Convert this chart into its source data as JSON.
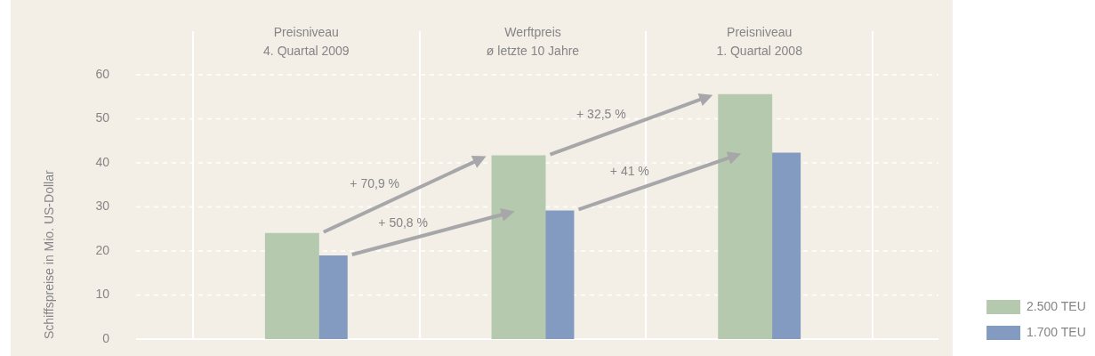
{
  "chart_data": {
    "type": "bar",
    "categories": [
      "Preisniveau\n4. Quartal 2009",
      "Werftpreis\nø letzte 10 Jahre",
      "Preisniveau\n1. Quartal 2008"
    ],
    "series": [
      {
        "name": "2.500 TEU",
        "color": "#b5c9ae",
        "values": [
          24.1,
          41.7,
          55.6
        ]
      },
      {
        "name": "1.700 TEU",
        "color": "#839bc0",
        "values": [
          19,
          29.2,
          42.3
        ]
      }
    ],
    "annotations": [
      "+ 70,9 %",
      "+ 32,5 %",
      "+ 50,8 %",
      "+ 41 %"
    ],
    "ylabel": "Schiffspreise in Mio. US-Dollar",
    "ylim": [
      0,
      60
    ],
    "yticks": [
      0,
      10,
      20,
      30,
      40,
      50,
      60
    ],
    "grid": true,
    "legend": "bottom right"
  }
}
